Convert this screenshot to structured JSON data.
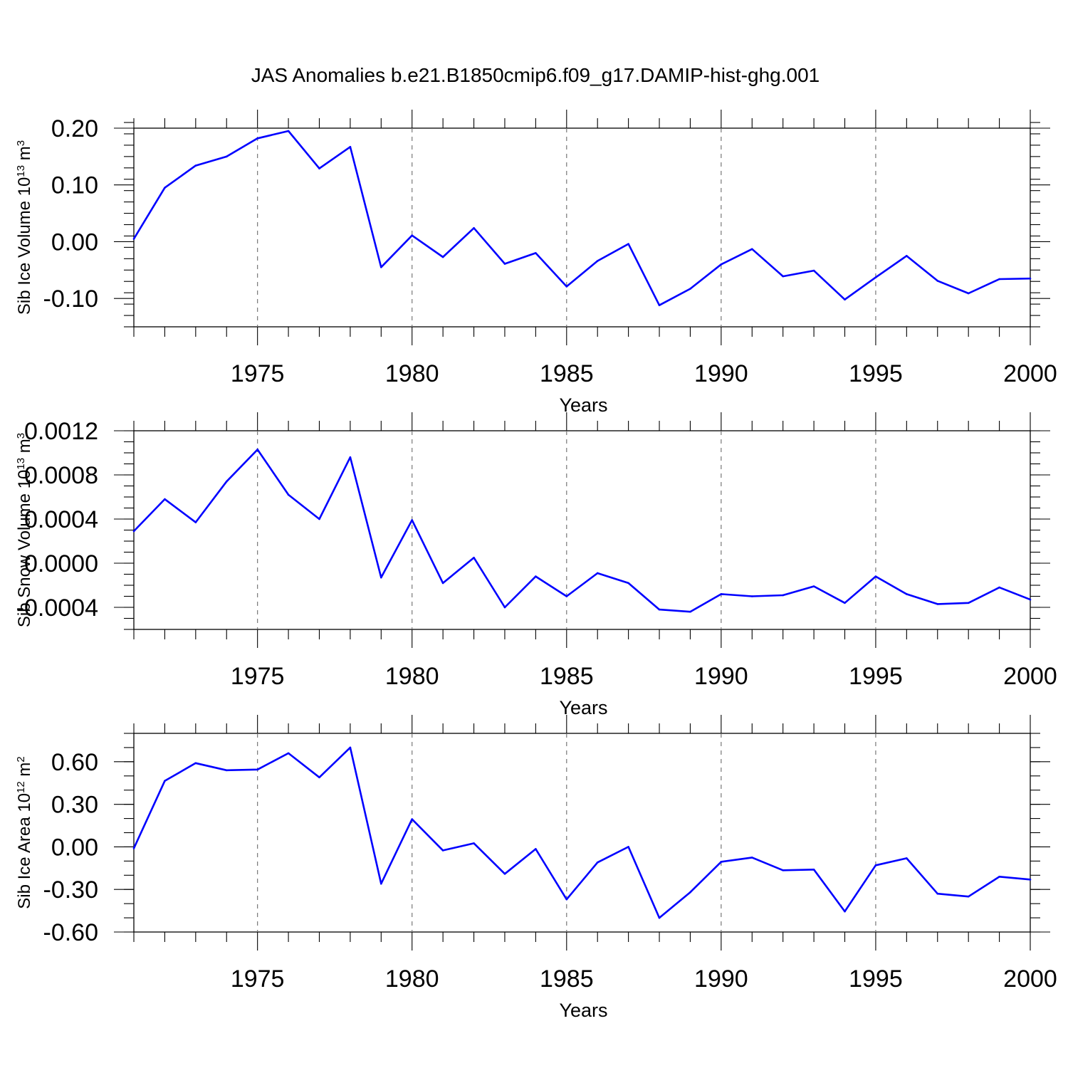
{
  "title": "JAS Anomalies b.e21.B1850cmip6.f09_g17.DAMIP-hist-ghg.001",
  "colors": {
    "line": "#0000ff",
    "frame": "#000000",
    "grid": "#777777"
  },
  "chart_data": [
    {
      "type": "line",
      "ylabel": "Sib Ice Volume 10",
      "ylabel_sup": "13",
      "ylabel_unit": " m",
      "ylabel_unit_sup": "3",
      "xlabel": "Years",
      "xlim": [
        1971,
        2000
      ],
      "ylim": [
        -0.15,
        0.2
      ],
      "yticks": [
        0.2,
        0.1,
        0.0,
        -0.1
      ],
      "ytick_labels": [
        "0.20",
        "0.10",
        "0.00",
        "-0.10"
      ],
      "yminor_step": 0.02,
      "xticks": [
        1975,
        1980,
        1985,
        1990,
        1995,
        2000
      ],
      "xtick_labels": [
        "1975",
        "1980",
        "1985",
        "1990",
        "1995",
        "2000"
      ],
      "x": [
        1971,
        1972,
        1973,
        1974,
        1975,
        1976,
        1977,
        1978,
        1979,
        1980,
        1981,
        1982,
        1983,
        1984,
        1985,
        1986,
        1987,
        1988,
        1989,
        1990,
        1991,
        1992,
        1993,
        1994,
        1995,
        1996,
        1997,
        1998,
        1999,
        2000
      ],
      "values": [
        0.005,
        0.095,
        0.134,
        0.15,
        0.182,
        0.195,
        0.129,
        0.167,
        -0.045,
        0.011,
        -0.027,
        0.024,
        -0.039,
        -0.02,
        -0.079,
        -0.034,
        -0.004,
        -0.112,
        -0.083,
        -0.04,
        -0.013,
        -0.061,
        -0.051,
        -0.102,
        -0.063,
        -0.025,
        -0.069,
        -0.091,
        -0.066,
        -0.065
      ]
    },
    {
      "type": "line",
      "ylabel": "Sib Snow Volume 10",
      "ylabel_sup": "13",
      "ylabel_unit": " m",
      "ylabel_unit_sup": "3",
      "xlabel": "Years",
      "xlim": [
        1971,
        2000
      ],
      "ylim": [
        -0.0006,
        0.0012
      ],
      "yticks": [
        0.0012,
        0.0008,
        0.0004,
        0.0,
        -0.0004
      ],
      "ytick_labels": [
        "0.0012",
        "0.0008",
        "0.0004",
        "0.0000",
        "-0.0004"
      ],
      "yminor_step": 0.0001,
      "xticks": [
        1975,
        1980,
        1985,
        1990,
        1995,
        2000
      ],
      "xtick_labels": [
        "1975",
        "1980",
        "1985",
        "1990",
        "1995",
        "2000"
      ],
      "x": [
        1971,
        1972,
        1973,
        1974,
        1975,
        1976,
        1977,
        1978,
        1979,
        1980,
        1981,
        1982,
        1983,
        1984,
        1985,
        1986,
        1987,
        1988,
        1989,
        1990,
        1991,
        1992,
        1993,
        1994,
        1995,
        1996,
        1997,
        1998,
        1999,
        2000
      ],
      "values": [
        0.00029,
        0.00058,
        0.00037,
        0.00074,
        0.00103,
        0.00062,
        0.0004,
        0.00096,
        -0.00013,
        0.00039,
        -0.00018,
        5e-05,
        -0.0004,
        -0.00012,
        -0.0003,
        -9e-05,
        -0.00018,
        -0.00042,
        -0.00044,
        -0.00028,
        -0.0003,
        -0.00029,
        -0.00021,
        -0.00036,
        -0.00012,
        -0.00028,
        -0.00037,
        -0.00036,
        -0.00022,
        -0.00033
      ]
    },
    {
      "type": "line",
      "ylabel": "Sib Ice Area 10",
      "ylabel_sup": "12",
      "ylabel_unit": " m",
      "ylabel_unit_sup": "2",
      "xlabel": "Years",
      "xlim": [
        1971,
        2000
      ],
      "ylim": [
        -0.6,
        0.8
      ],
      "yticks": [
        0.6,
        0.3,
        0.0,
        -0.3,
        -0.6
      ],
      "ytick_labels": [
        "0.60",
        "0.30",
        "0.00",
        "-0.30",
        "-0.60"
      ],
      "yminor_step": 0.1,
      "xticks": [
        1975,
        1980,
        1985,
        1990,
        1995,
        2000
      ],
      "xtick_labels": [
        "1975",
        "1980",
        "1985",
        "1990",
        "1995",
        "2000"
      ],
      "x": [
        1971,
        1972,
        1973,
        1974,
        1975,
        1976,
        1977,
        1978,
        1979,
        1980,
        1981,
        1982,
        1983,
        1984,
        1985,
        1986,
        1987,
        1988,
        1989,
        1990,
        1991,
        1992,
        1993,
        1994,
        1995,
        1996,
        1997,
        1998,
        1999,
        2000
      ],
      "values": [
        -0.01,
        0.465,
        0.59,
        0.54,
        0.545,
        0.66,
        0.49,
        0.7,
        -0.26,
        0.195,
        -0.025,
        0.025,
        -0.19,
        -0.015,
        -0.37,
        -0.11,
        0.0,
        -0.5,
        -0.32,
        -0.105,
        -0.075,
        -0.165,
        -0.16,
        -0.455,
        -0.13,
        -0.08,
        -0.33,
        -0.35,
        -0.21,
        -0.23
      ]
    }
  ]
}
